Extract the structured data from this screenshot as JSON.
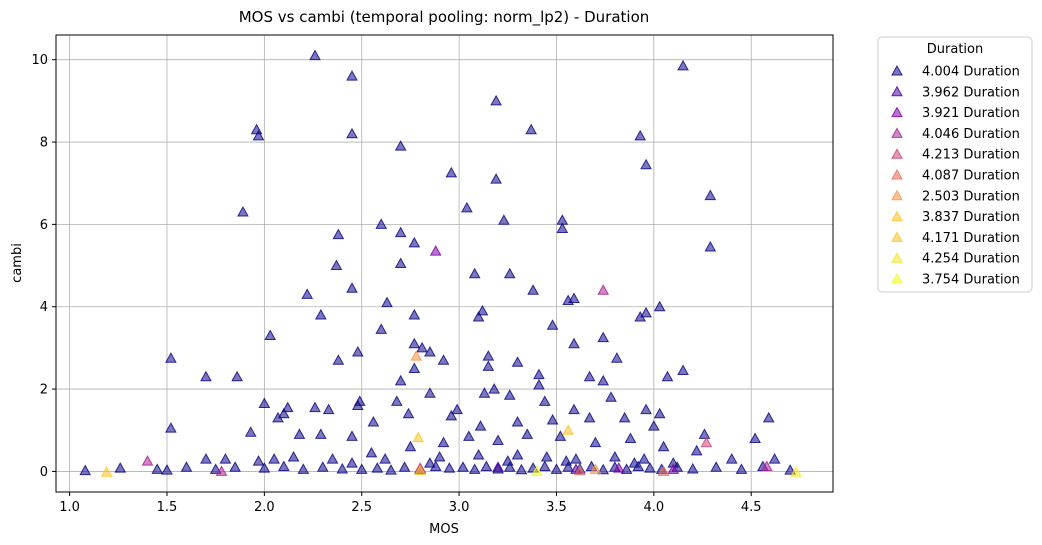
{
  "chart_data": {
    "type": "scatter",
    "title": "MOS vs cambi (temporal pooling: norm_lp2) - Duration",
    "xlabel": "MOS",
    "ylabel": "cambi",
    "xlim": [
      0.93,
      4.92
    ],
    "ylim": [
      -0.5,
      10.6
    ],
    "xticks": [
      "1.0",
      "1.5",
      "2.0",
      "2.5",
      "3.0",
      "3.5",
      "4.0",
      "4.5"
    ],
    "xtick_values": [
      1.0,
      1.5,
      2.0,
      2.5,
      3.0,
      3.5,
      4.0,
      4.5
    ],
    "yticks": [
      "0",
      "2",
      "4",
      "6",
      "8",
      "10"
    ],
    "ytick_values": [
      0,
      2,
      4,
      6,
      8,
      10
    ],
    "grid": true,
    "marker": "triangle",
    "legend": {
      "title": "Duration",
      "placement": "outside-right-top"
    },
    "series": [
      {
        "name": "4.004 Duration",
        "color": "#0d0887",
        "points": [
          [
            2.26,
            10.1
          ],
          [
            4.15,
            9.85
          ],
          [
            2.45,
            9.6
          ],
          [
            3.19,
            9.0
          ],
          [
            1.96,
            8.3
          ],
          [
            1.97,
            8.15
          ],
          [
            2.45,
            8.2
          ],
          [
            3.37,
            8.3
          ],
          [
            3.93,
            8.15
          ],
          [
            2.7,
            7.9
          ],
          [
            3.96,
            7.45
          ],
          [
            2.96,
            7.25
          ],
          [
            3.19,
            7.1
          ],
          [
            4.29,
            6.7
          ],
          [
            1.89,
            6.3
          ],
          [
            3.04,
            6.4
          ],
          [
            3.23,
            6.1
          ],
          [
            3.53,
            6.1
          ],
          [
            3.53,
            5.9
          ],
          [
            2.6,
            6.0
          ],
          [
            2.7,
            5.8
          ],
          [
            2.38,
            5.75
          ],
          [
            2.77,
            5.55
          ],
          [
            4.29,
            5.45
          ],
          [
            2.37,
            5.0
          ],
          [
            2.7,
            5.05
          ],
          [
            3.08,
            4.8
          ],
          [
            3.26,
            4.8
          ],
          [
            2.22,
            4.3
          ],
          [
            2.45,
            4.45
          ],
          [
            2.63,
            4.1
          ],
          [
            3.38,
            4.4
          ],
          [
            3.56,
            4.15
          ],
          [
            3.59,
            4.2
          ],
          [
            4.03,
            4.0
          ],
          [
            3.12,
            3.9
          ],
          [
            3.1,
            3.75
          ],
          [
            2.29,
            3.8
          ],
          [
            2.77,
            3.8
          ],
          [
            3.93,
            3.75
          ],
          [
            3.96,
            3.85
          ],
          [
            3.48,
            3.55
          ],
          [
            2.03,
            3.3
          ],
          [
            2.6,
            3.45
          ],
          [
            3.59,
            3.1
          ],
          [
            3.74,
            3.25
          ],
          [
            2.77,
            3.1
          ],
          [
            2.81,
            3.0
          ],
          [
            2.85,
            2.9
          ],
          [
            2.48,
            2.9
          ],
          [
            2.38,
            2.7
          ],
          [
            1.52,
            2.75
          ],
          [
            2.92,
            2.7
          ],
          [
            3.15,
            2.8
          ],
          [
            3.3,
            2.65
          ],
          [
            3.81,
            2.75
          ],
          [
            1.7,
            2.3
          ],
          [
            1.86,
            2.3
          ],
          [
            2.7,
            2.2
          ],
          [
            2.77,
            2.5
          ],
          [
            3.15,
            2.55
          ],
          [
            3.41,
            2.35
          ],
          [
            3.67,
            2.3
          ],
          [
            3.74,
            2.2
          ],
          [
            4.07,
            2.3
          ],
          [
            4.15,
            2.45
          ],
          [
            2.0,
            1.65
          ],
          [
            2.1,
            1.4
          ],
          [
            2.12,
            1.55
          ],
          [
            2.26,
            1.55
          ],
          [
            2.33,
            1.5
          ],
          [
            2.48,
            1.6
          ],
          [
            2.49,
            1.7
          ],
          [
            2.68,
            1.7
          ],
          [
            2.85,
            1.9
          ],
          [
            2.99,
            1.5
          ],
          [
            3.13,
            1.9
          ],
          [
            3.18,
            2.0
          ],
          [
            3.26,
            1.85
          ],
          [
            3.41,
            2.1
          ],
          [
            3.44,
            1.7
          ],
          [
            3.59,
            1.5
          ],
          [
            3.78,
            1.8
          ],
          [
            3.96,
            1.5
          ],
          [
            4.03,
            1.4
          ],
          [
            4.59,
            1.3
          ],
          [
            1.52,
            1.05
          ],
          [
            1.93,
            0.95
          ],
          [
            2.07,
            1.3
          ],
          [
            2.18,
            0.9
          ],
          [
            2.29,
            0.9
          ],
          [
            2.45,
            0.85
          ],
          [
            2.56,
            1.2
          ],
          [
            2.74,
            1.4
          ],
          [
            2.96,
            1.35
          ],
          [
            3.11,
            1.1
          ],
          [
            3.3,
            1.2
          ],
          [
            3.48,
            1.25
          ],
          [
            3.67,
            1.3
          ],
          [
            3.85,
            1.3
          ],
          [
            4.0,
            1.1
          ],
          [
            4.26,
            0.9
          ],
          [
            4.52,
            0.8
          ],
          [
            1.7,
            0.3
          ],
          [
            1.8,
            0.3
          ],
          [
            1.97,
            0.25
          ],
          [
            2.05,
            0.3
          ],
          [
            2.15,
            0.35
          ],
          [
            2.35,
            0.3
          ],
          [
            2.55,
            0.45
          ],
          [
            2.75,
            0.6
          ],
          [
            2.92,
            0.7
          ],
          [
            3.05,
            0.85
          ],
          [
            3.2,
            0.75
          ],
          [
            3.35,
            0.9
          ],
          [
            3.52,
            0.85
          ],
          [
            3.7,
            0.7
          ],
          [
            3.88,
            0.8
          ],
          [
            4.05,
            0.6
          ],
          [
            4.22,
            0.5
          ],
          [
            4.4,
            0.3
          ],
          [
            4.62,
            0.3
          ],
          [
            1.08,
            0.02
          ],
          [
            1.26,
            0.08
          ],
          [
            1.45,
            0.05
          ],
          [
            1.5,
            0.03
          ],
          [
            1.6,
            0.1
          ],
          [
            1.75,
            0.05
          ],
          [
            1.85,
            0.1
          ],
          [
            2.0,
            0.08
          ],
          [
            2.1,
            0.12
          ],
          [
            2.2,
            0.05
          ],
          [
            2.3,
            0.1
          ],
          [
            2.4,
            0.06
          ],
          [
            2.5,
            0.05
          ],
          [
            2.58,
            0.08
          ],
          [
            2.65,
            0.03
          ],
          [
            2.72,
            0.1
          ],
          [
            2.8,
            0.05
          ],
          [
            2.88,
            0.12
          ],
          [
            2.95,
            0.08
          ],
          [
            3.02,
            0.1
          ],
          [
            3.08,
            0.05
          ],
          [
            3.14,
            0.12
          ],
          [
            3.2,
            0.06
          ],
          [
            3.26,
            0.1
          ],
          [
            3.32,
            0.04
          ],
          [
            3.38,
            0.08
          ],
          [
            3.44,
            0.12
          ],
          [
            3.5,
            0.05
          ],
          [
            3.56,
            0.1
          ],
          [
            3.62,
            0.06
          ],
          [
            3.68,
            0.12
          ],
          [
            3.74,
            0.04
          ],
          [
            3.8,
            0.1
          ],
          [
            3.86,
            0.05
          ],
          [
            3.92,
            0.12
          ],
          [
            3.98,
            0.08
          ],
          [
            4.04,
            0.05
          ],
          [
            4.12,
            0.1
          ],
          [
            4.2,
            0.06
          ],
          [
            4.32,
            0.1
          ],
          [
            4.45,
            0.05
          ],
          [
            4.56,
            0.12
          ],
          [
            4.7,
            0.03
          ],
          [
            2.62,
            0.3
          ],
          [
            2.9,
            0.35
          ],
          [
            3.1,
            0.4
          ],
          [
            3.3,
            0.4
          ],
          [
            3.45,
            0.35
          ],
          [
            3.6,
            0.3
          ],
          [
            3.8,
            0.35
          ],
          [
            3.95,
            0.3
          ],
          [
            4.1,
            0.2
          ],
          [
            2.45,
            0.2
          ],
          [
            2.85,
            0.2
          ],
          [
            3.25,
            0.25
          ],
          [
            3.55,
            0.25
          ],
          [
            3.9,
            0.2
          ]
        ]
      },
      {
        "name": "3.962 Duration",
        "color": "#4c02a1",
        "points": [
          [
            3.2,
            0.1
          ],
          [
            3.6,
            0.05
          ]
        ]
      },
      {
        "name": "3.921 Duration",
        "color": "#7e03a8",
        "points": [
          [
            2.88,
            5.35
          ],
          [
            3.82,
            0.08
          ],
          [
            4.1,
            0.05
          ]
        ]
      },
      {
        "name": "4.046 Duration",
        "color": "#a92395",
        "points": [
          [
            1.4,
            0.25
          ],
          [
            3.74,
            4.4
          ],
          [
            1.78,
            0.0
          ],
          [
            4.58,
            0.12
          ]
        ]
      },
      {
        "name": "4.213 Duration",
        "color": "#cc4778",
        "points": [
          [
            4.27,
            0.7
          ],
          [
            2.8,
            0.08
          ]
        ]
      },
      {
        "name": "4.087 Duration",
        "color": "#e56b5d",
        "points": [
          [
            4.05,
            0.0
          ],
          [
            3.62,
            0.02
          ]
        ]
      },
      {
        "name": "2.503 Duration",
        "color": "#f89441",
        "points": [
          [
            2.78,
            2.8
          ],
          [
            3.7,
            0.05
          ]
        ]
      },
      {
        "name": "3.837 Duration",
        "color": "#fdc328",
        "points": [
          [
            3.56,
            1.0
          ],
          [
            2.79,
            0.82
          ]
        ]
      },
      {
        "name": "4.171 Duration",
        "color": "#fdc328",
        "points": [
          [
            1.19,
            -0.02
          ],
          [
            2.8,
            0.02
          ]
        ]
      },
      {
        "name": "4.254 Duration",
        "color": "#f5e626",
        "points": [
          [
            4.73,
            -0.02
          ]
        ]
      },
      {
        "name": "3.754 Duration",
        "color": "#f0f921",
        "points": [
          [
            3.4,
            0.0
          ]
        ]
      }
    ]
  }
}
